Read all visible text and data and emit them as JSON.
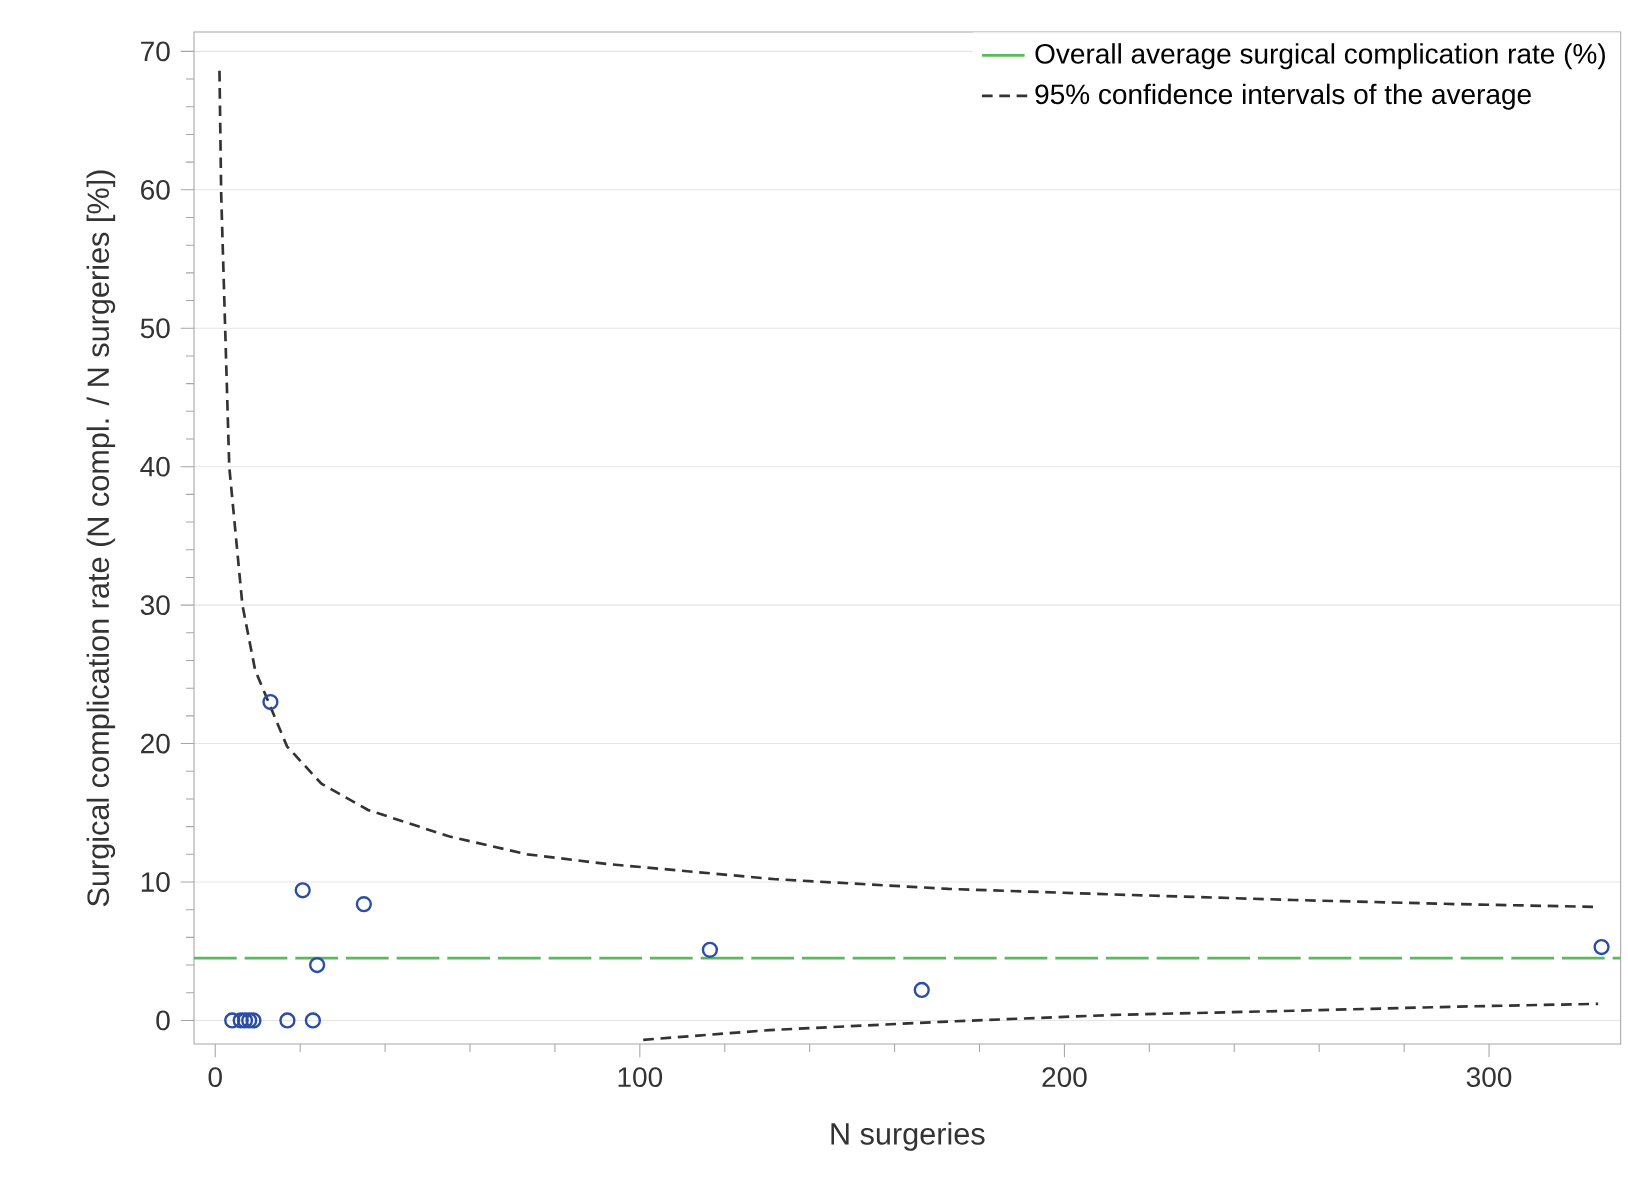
{
  "chart_data": {
    "type": "scatter",
    "xlabel": "N surgeries",
    "ylabel": "Surgical complication rate (N compl. / N surgeries [%])",
    "xlim": [
      -5,
      331
    ],
    "ylim": [
      -1.7,
      71.4
    ],
    "xticks": [
      0,
      100,
      200,
      300
    ],
    "yticks": [
      0,
      10,
      20,
      30,
      40,
      50,
      60,
      70
    ],
    "grid": "y",
    "legend": "top right",
    "marker": "circle",
    "ref_lines": [
      {
        "axis": "y",
        "value": 4.5,
        "label": "Overall average surgical complication rate (%)",
        "color": "#5cb85c",
        "line_style": "dashed"
      }
    ],
    "series": [
      {
        "color": "#2a4ea6",
        "x": [
          4,
          6,
          7,
          8,
          9,
          17,
          23,
          13,
          20.6,
          24,
          35,
          116.5,
          166.4,
          326.5
        ],
        "values": [
          0,
          0,
          0,
          0,
          0,
          0,
          0,
          23,
          9.4,
          4,
          8.4,
          5.1,
          2.2,
          5.3
        ]
      },
      {
        "type": "line",
        "name": "95% confidence intervals of the average",
        "color": "#333333",
        "line_style": "dashed",
        "marker": "none",
        "x": [
          1,
          1.4,
          3.3,
          6.4,
          9.4,
          16.9,
          25,
          36,
          55,
          73.5,
          92.3,
          132,
          172.7,
          211.7,
          254,
          292.8,
          325.6
        ],
        "values": [
          68.6,
          59.7,
          40,
          30,
          25.3,
          19.8,
          17.1,
          15.2,
          13.3,
          12,
          11.3,
          10.2,
          9.5,
          9.1,
          8.7,
          8.4,
          8.2
        ]
      },
      {
        "type": "line",
        "color": "#333333",
        "line_style": "dashed",
        "marker": "none",
        "x": [
          100.8,
          130.5,
          171,
          211.7,
          254,
          292.9,
          325.7
        ],
        "values": [
          -1.4,
          -0.7,
          -0.1,
          0.4,
          0.7,
          1.0,
          1.2
        ]
      }
    ]
  }
}
